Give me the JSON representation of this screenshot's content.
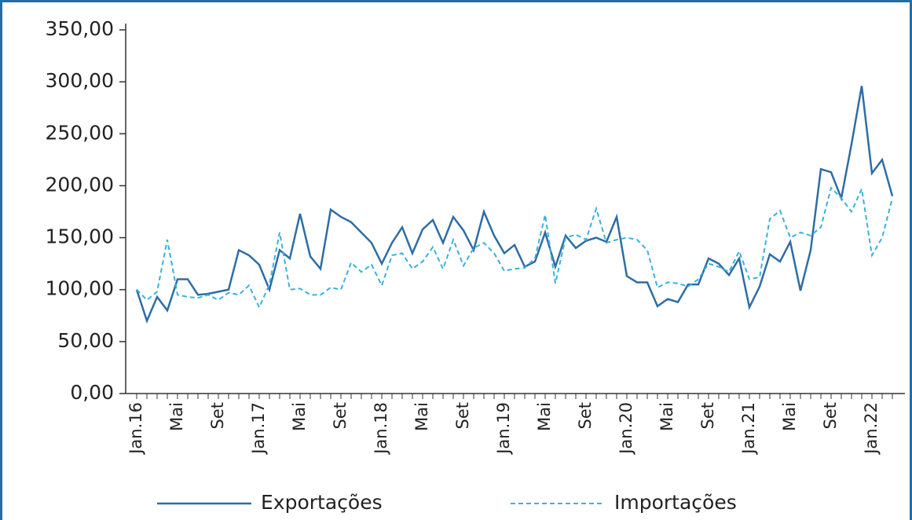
{
  "chart_data": {
    "type": "line",
    "categories": [
      "Jan.16",
      null,
      null,
      null,
      "Mai",
      null,
      null,
      null,
      "Set",
      null,
      null,
      null,
      "Jan.17",
      null,
      null,
      null,
      "Mai",
      null,
      null,
      null,
      "Set",
      null,
      null,
      null,
      "Jan.18",
      null,
      null,
      null,
      "Mai",
      null,
      null,
      null,
      "Set",
      null,
      null,
      null,
      "Jan.19",
      null,
      null,
      null,
      "Mai",
      null,
      null,
      null,
      "Set",
      null,
      null,
      null,
      "Jan.20",
      null,
      null,
      null,
      "Mai",
      null,
      null,
      null,
      "Set",
      null,
      null,
      null,
      "Jan.21",
      null,
      null,
      null,
      "Mai",
      null,
      null,
      null,
      "Set",
      null,
      null,
      null,
      "Jan.22",
      null,
      null
    ],
    "series": [
      {
        "name": "Exportações",
        "color": "#2e6da4",
        "dash": false,
        "values": [
          100,
          70,
          93,
          80,
          110,
          110,
          95,
          96,
          98,
          100,
          138,
          133,
          124,
          100,
          138,
          130,
          173,
          132,
          120,
          177,
          170,
          165,
          155,
          145,
          125,
          145,
          160,
          135,
          158,
          167,
          145,
          170,
          157,
          138,
          175,
          152,
          135,
          143,
          122,
          127,
          155,
          122,
          152,
          140,
          147,
          150,
          146,
          170,
          113,
          107,
          107,
          84,
          91,
          88,
          105,
          105,
          130,
          125,
          114,
          130,
          83,
          103,
          134,
          127,
          146,
          99,
          138,
          216,
          213,
          188,
          240,
          296,
          212,
          225,
          190
        ]
      },
      {
        "name": "Importações",
        "color": "#3bb0dd",
        "dash": true,
        "values": [
          100,
          90,
          98,
          148,
          95,
          93,
          92,
          95,
          90,
          97,
          95,
          104,
          83,
          105,
          155,
          100,
          101,
          95,
          95,
          102,
          100,
          126,
          117,
          124,
          104,
          133,
          135,
          120,
          127,
          141,
          120,
          148,
          123,
          140,
          145,
          135,
          118,
          120,
          121,
          130,
          172,
          106,
          150,
          153,
          148,
          178,
          145,
          148,
          150,
          148,
          138,
          102,
          107,
          106,
          103,
          110,
          125,
          122,
          117,
          137,
          110,
          112,
          168,
          176,
          150,
          155,
          152,
          160,
          198,
          188,
          175,
          197,
          133,
          150,
          188
        ]
      }
    ],
    "ylim": [
      0,
      350
    ],
    "yticks": [
      {
        "value": 0,
        "label": "0,00"
      },
      {
        "value": 50,
        "label": "50,00"
      },
      {
        "value": 100,
        "label": "100,00"
      },
      {
        "value": 150,
        "label": "150,00"
      },
      {
        "value": 200,
        "label": "200,00"
      },
      {
        "value": 250,
        "label": "250,00"
      },
      {
        "value": 300,
        "label": "300,00"
      },
      {
        "value": 350,
        "label": "350,00"
      }
    ],
    "grid": false,
    "legend": "bottom"
  }
}
